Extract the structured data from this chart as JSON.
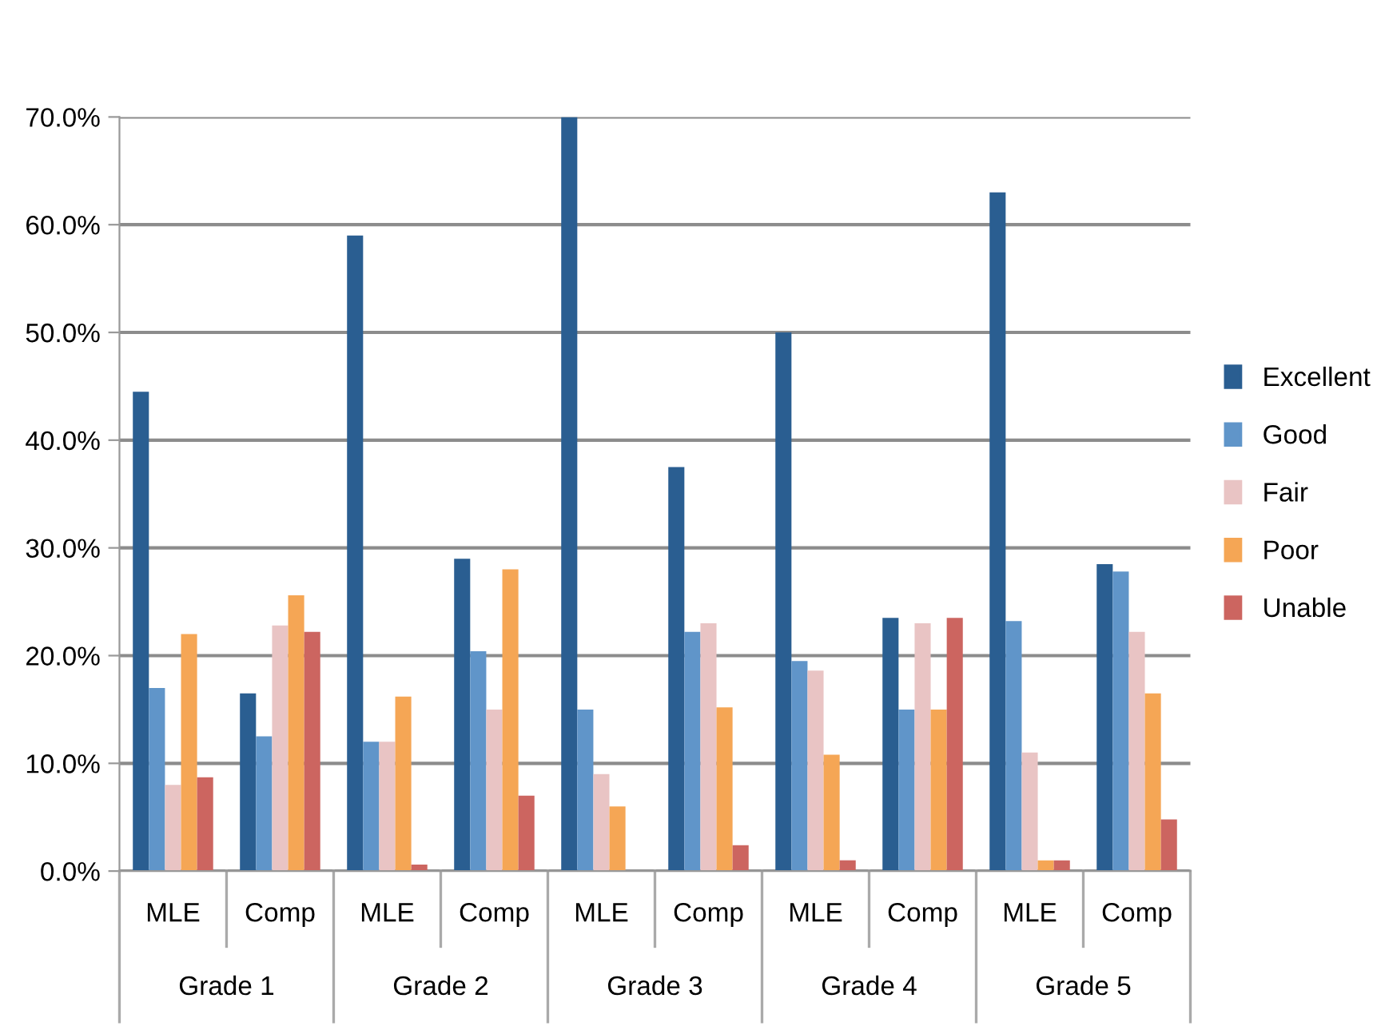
{
  "chart_data": {
    "type": "bar",
    "categories": [
      "MLE",
      "Comp",
      "MLE",
      "Comp",
      "MLE",
      "Comp",
      "MLE",
      "Comp",
      "MLE",
      "Comp"
    ],
    "annotations": [
      "Grade 1",
      "Grade 2",
      "Grade 3",
      "Grade 4",
      "Grade 5"
    ],
    "series": [
      {
        "name": "Excellent",
        "color": "#2a5e91",
        "values": [
          44.5,
          16.5,
          59,
          29,
          70,
          37.5,
          50,
          23.5,
          63,
          28.5
        ]
      },
      {
        "name": "Good",
        "color": "#6095c9",
        "values": [
          17,
          12.5,
          12,
          20.4,
          15,
          22.2,
          19.5,
          15,
          23.2,
          27.8
        ]
      },
      {
        "name": "Fair",
        "color": "#e9c4c4",
        "values": [
          8,
          22.8,
          12,
          15,
          9,
          23,
          18.6,
          23,
          11,
          22.2
        ]
      },
      {
        "name": "Poor",
        "color": "#f5a655",
        "values": [
          22,
          25.6,
          16.2,
          28,
          6,
          15.2,
          10.8,
          15,
          1,
          16.5
        ]
      },
      {
        "name": "Unable",
        "color": "#cc6560",
        "values": [
          8.7,
          22.2,
          0.6,
          7,
          0,
          2.4,
          1,
          23.5,
          1,
          4.8
        ]
      }
    ],
    "ylim": [
      0,
      70
    ],
    "yticks": [
      {
        "value": 0,
        "label": "0.0%"
      },
      {
        "value": 10,
        "label": "10.0%"
      },
      {
        "value": 20,
        "label": "20.0%"
      },
      {
        "value": 30,
        "label": "30.0%"
      },
      {
        "value": 40,
        "label": "40.0%"
      },
      {
        "value": 50,
        "label": "50.0%"
      },
      {
        "value": 60,
        "label": "60.0%"
      },
      {
        "value": 70,
        "label": "70.0%"
      }
    ],
    "grid": "y",
    "legend": "right"
  }
}
